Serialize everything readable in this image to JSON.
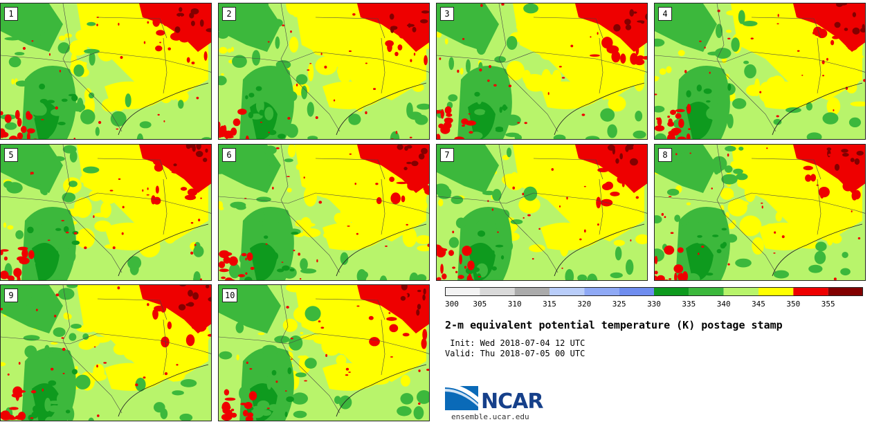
{
  "panels": [
    {
      "label": "1"
    },
    {
      "label": "2"
    },
    {
      "label": "3"
    },
    {
      "label": "4"
    },
    {
      "label": "5"
    },
    {
      "label": "6"
    },
    {
      "label": "7"
    },
    {
      "label": "8"
    },
    {
      "label": "9"
    },
    {
      "label": "10"
    }
  ],
  "colorbar": {
    "ticks": [
      "300",
      "305",
      "310",
      "315",
      "320",
      "325",
      "330",
      "335",
      "340",
      "345",
      "350",
      "355"
    ],
    "colors": [
      "#f3f3f3",
      "#d9d9d9",
      "#ababab",
      "#b9cdf9",
      "#8fa9f5",
      "#6f8def",
      "#0e9a1e",
      "#3cb83c",
      "#b8f46b",
      "#ffff00",
      "#ee0000",
      "#820000"
    ]
  },
  "title": "2-m equivalent potential temperature (K) postage stamp",
  "init_line": " Init: Wed 2018-07-04 12 UTC",
  "valid_line": "Valid: Thu 2018-07-05 00 UTC",
  "logo_text": "NCAR",
  "website": "ensemble.ucar.edu"
}
